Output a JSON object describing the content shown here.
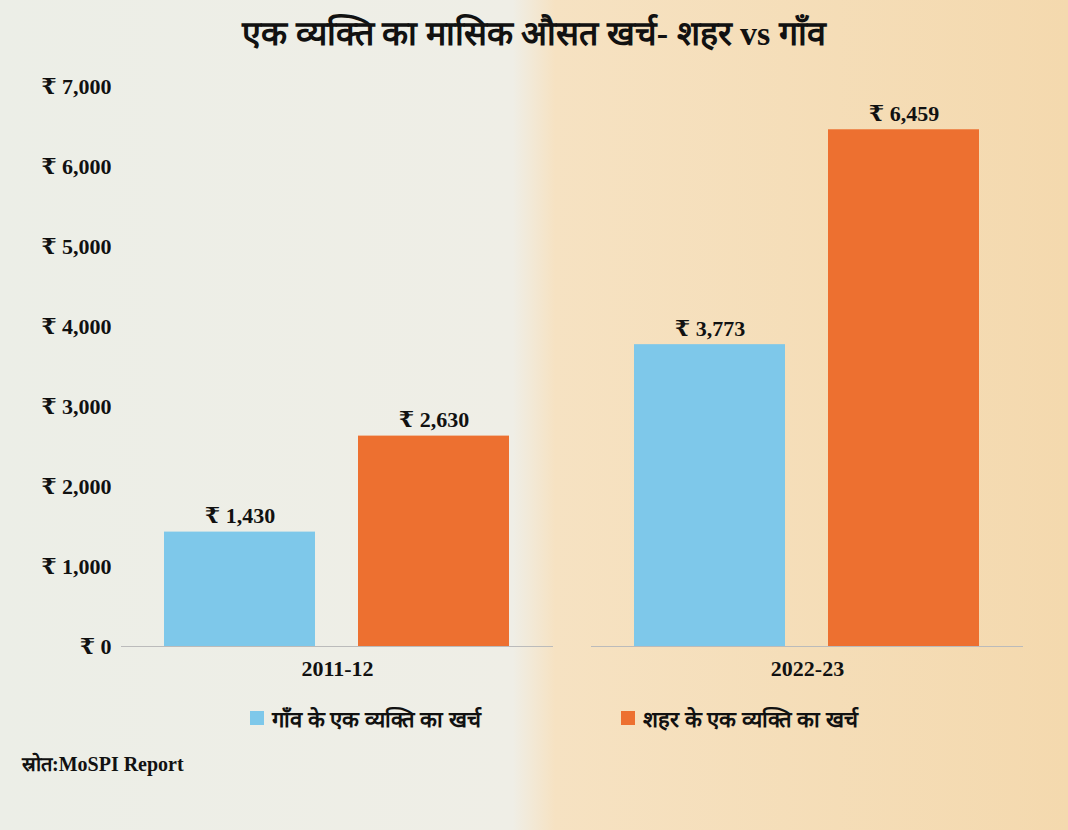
{
  "chart_data": {
    "type": "bar",
    "title": "एक व्यक्ति का मासिक औसत खर्च- शहर vs गाँव",
    "categories": [
      "2011-12",
      "2022-23"
    ],
    "series": [
      {
        "name": "गाँव के एक व्यक्ति का खर्च",
        "color": "#7ec8ea",
        "values": [
          1430,
          3773
        ],
        "value_labels": [
          "₹ 1,430",
          "₹ 3,773"
        ]
      },
      {
        "name": "शहर के एक व्यक्ति का खर्च",
        "color": "#ed7030",
        "values": [
          2630,
          6459
        ],
        "value_labels": [
          "₹ 2,630",
          "₹ 6,459"
        ]
      }
    ],
    "ylim": [
      0,
      7000
    ],
    "yticks": [
      {
        "value": 0,
        "label": "₹ 0"
      },
      {
        "value": 1000,
        "label": "₹ 1,000"
      },
      {
        "value": 2000,
        "label": "₹ 2,000"
      },
      {
        "value": 3000,
        "label": "₹ 3,000"
      },
      {
        "value": 4000,
        "label": "₹ 4,000"
      },
      {
        "value": 5000,
        "label": "₹ 5,000"
      },
      {
        "value": 6000,
        "label": "₹ 6,000"
      },
      {
        "value": 7000,
        "label": "₹ 7,000"
      }
    ],
    "grid": false,
    "data_labels": true,
    "legend": "bottom",
    "source": "स्रोत:MoSPI Report"
  }
}
